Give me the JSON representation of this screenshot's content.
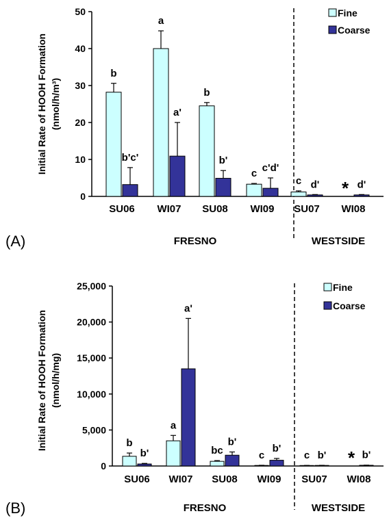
{
  "colors": {
    "fine": "#ccffff",
    "coarse": "#333399"
  },
  "chart_data": [
    {
      "panel_label": "(A)",
      "type": "bar",
      "ylabel_line1": "Initial Rate of HOOH Formation",
      "ylabel_line2": "(nmol/h/m³)",
      "ylim": [
        0,
        50
      ],
      "y_ticks": [
        "0",
        "10",
        "20",
        "30",
        "40",
        "50"
      ],
      "categories": [
        "SU06",
        "WI07",
        "SU08",
        "WI09",
        "SU07",
        "WI08"
      ],
      "groups": [
        "FRESNO",
        "WESTSIDE"
      ],
      "legend": [
        "Fine",
        "Coarse"
      ],
      "series": [
        {
          "name": "Fine",
          "values": [
            28.2,
            40,
            24.5,
            3.3,
            1.2,
            0
          ],
          "errors": [
            2.4,
            4.8,
            0.9,
            0.2,
            0.3,
            0
          ],
          "labels": [
            "b",
            "a",
            "b",
            "c",
            "c",
            "*"
          ]
        },
        {
          "name": "Coarse",
          "values": [
            3.2,
            10.9,
            4.9,
            2.2,
            0.4,
            0.4
          ],
          "errors": [
            4.6,
            9.1,
            2.1,
            2.8,
            0.1,
            0.1
          ],
          "labels": [
            "b'c'",
            "a'",
            "b'",
            "c'd'",
            "d'",
            "d'"
          ]
        }
      ]
    },
    {
      "panel_label": "(B)",
      "type": "bar",
      "ylabel_line1": "Initial Rate of HOOH Formation",
      "ylabel_line2": "(nmol/h/mg)",
      "ylim": [
        0,
        25000
      ],
      "y_ticks": [
        "0",
        "5,000",
        "10,000",
        "15,000",
        "20,000",
        "25,000"
      ],
      "categories": [
        "SU06",
        "WI07",
        "SU08",
        "WI09",
        "SU07",
        "WI08"
      ],
      "groups": [
        "FRESNO",
        "WESTSIDE"
      ],
      "legend": [
        "Fine",
        "Coarse"
      ],
      "series": [
        {
          "name": "Fine",
          "values": [
            1350,
            3500,
            650,
            80,
            70,
            0
          ],
          "errors": [
            450,
            750,
            100,
            20,
            15,
            0
          ],
          "labels": [
            "b",
            "a",
            "bc",
            "c",
            "c",
            "*"
          ]
        },
        {
          "name": "Coarse",
          "values": [
            280,
            13500,
            1500,
            800,
            80,
            100
          ],
          "errors": [
            80,
            7000,
            450,
            250,
            15,
            20
          ],
          "labels": [
            "b'",
            "a'",
            "b'",
            "b'",
            "b'",
            "b'"
          ]
        }
      ]
    }
  ]
}
